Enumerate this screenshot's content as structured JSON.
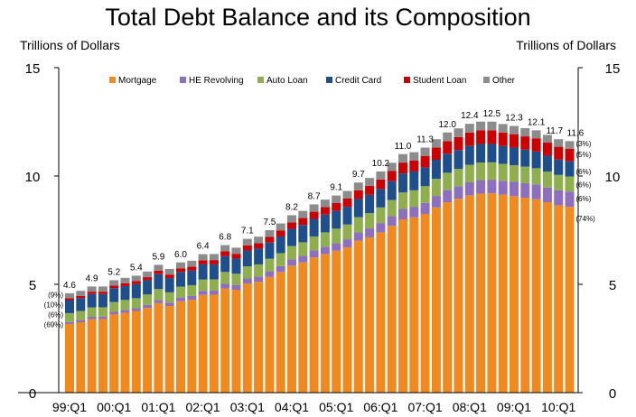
{
  "chart_data": {
    "type": "bar",
    "stacked": true,
    "title": "Total Debt Balance and its Composition",
    "ylabel_left": "Trillions of Dollars",
    "ylabel_right": "Trillions of Dollars",
    "ylim": [
      0,
      15
    ],
    "yticks": [
      0,
      5,
      10,
      15
    ],
    "grid": false,
    "legend_position": "top",
    "categories": [
      "99:Q1",
      "99:Q2",
      "99:Q3",
      "99:Q4",
      "00:Q1",
      "00:Q2",
      "00:Q3",
      "00:Q4",
      "01:Q1",
      "01:Q2",
      "01:Q3",
      "01:Q4",
      "02:Q1",
      "02:Q2",
      "02:Q3",
      "02:Q4",
      "03:Q1",
      "03:Q2",
      "03:Q3",
      "03:Q4",
      "04:Q1",
      "04:Q2",
      "04:Q3",
      "04:Q4",
      "05:Q1",
      "05:Q2",
      "05:Q3",
      "05:Q4",
      "06:Q1",
      "06:Q2",
      "06:Q3",
      "06:Q4",
      "07:Q1",
      "07:Q2",
      "07:Q3",
      "07:Q4",
      "08:Q1",
      "08:Q2",
      "08:Q3",
      "08:Q4",
      "09:Q1",
      "09:Q2",
      "09:Q3",
      "09:Q4",
      "10:Q1",
      "10:Q2"
    ],
    "xtick_labels": [
      "99:Q1",
      "00:Q1",
      "01:Q1",
      "02:Q1",
      "03:Q1",
      "04:Q1",
      "05:Q1",
      "06:Q1",
      "07:Q1",
      "08:Q1",
      "09:Q1",
      "10:Q1"
    ],
    "series": [
      {
        "name": "Mortgage",
        "color": "#F0891E",
        "values": [
          3.17,
          3.25,
          3.39,
          3.4,
          3.61,
          3.69,
          3.77,
          3.91,
          4.13,
          4.0,
          4.22,
          4.29,
          4.51,
          4.52,
          4.81,
          4.75,
          5.04,
          5.12,
          5.34,
          5.57,
          5.86,
          6.01,
          6.24,
          6.4,
          6.55,
          6.71,
          7.01,
          7.17,
          7.4,
          7.7,
          8.0,
          8.09,
          8.25,
          8.55,
          8.79,
          8.95,
          9.11,
          9.19,
          9.2,
          9.14,
          9.07,
          9.0,
          8.93,
          8.79,
          8.65,
          8.58
        ]
      },
      {
        "name": "HE Revolving",
        "color": "#8E6FBF",
        "values": [
          0.09,
          0.1,
          0.11,
          0.11,
          0.12,
          0.13,
          0.13,
          0.14,
          0.15,
          0.15,
          0.17,
          0.17,
          0.19,
          0.19,
          0.21,
          0.21,
          0.23,
          0.24,
          0.26,
          0.27,
          0.29,
          0.3,
          0.32,
          0.34,
          0.35,
          0.37,
          0.39,
          0.41,
          0.43,
          0.45,
          0.48,
          0.49,
          0.51,
          0.53,
          0.56,
          0.58,
          0.6,
          0.62,
          0.63,
          0.64,
          0.66,
          0.67,
          0.68,
          0.68,
          0.69,
          0.7
        ]
      },
      {
        "name": "Auto Loan",
        "color": "#8FAE4E",
        "values": [
          0.41,
          0.42,
          0.43,
          0.43,
          0.45,
          0.46,
          0.46,
          0.48,
          0.5,
          0.48,
          0.5,
          0.5,
          0.52,
          0.52,
          0.55,
          0.53,
          0.56,
          0.56,
          0.58,
          0.6,
          0.62,
          0.63,
          0.65,
          0.66,
          0.67,
          0.68,
          0.7,
          0.71,
          0.72,
          0.74,
          0.76,
          0.76,
          0.77,
          0.79,
          0.8,
          0.8,
          0.81,
          0.81,
          0.8,
          0.78,
          0.77,
          0.76,
          0.75,
          0.73,
          0.71,
          0.7
        ]
      },
      {
        "name": "Credit Card",
        "color": "#1F4E8C",
        "values": [
          0.6,
          0.6,
          0.62,
          0.61,
          0.64,
          0.64,
          0.65,
          0.66,
          0.69,
          0.66,
          0.68,
          0.68,
          0.7,
          0.69,
          0.73,
          0.7,
          0.73,
          0.73,
          0.75,
          0.77,
          0.79,
          0.8,
          0.81,
          0.82,
          0.82,
          0.82,
          0.84,
          0.84,
          0.85,
          0.87,
          0.88,
          0.87,
          0.87,
          0.88,
          0.88,
          0.87,
          0.87,
          0.86,
          0.85,
          0.83,
          0.81,
          0.79,
          0.77,
          0.74,
          0.71,
          0.7
        ]
      },
      {
        "name": "Student Loan",
        "color": "#CC0000",
        "values": [
          0.09,
          0.1,
          0.11,
          0.11,
          0.12,
          0.13,
          0.14,
          0.14,
          0.16,
          0.16,
          0.17,
          0.18,
          0.19,
          0.2,
          0.22,
          0.22,
          0.24,
          0.25,
          0.26,
          0.28,
          0.3,
          0.32,
          0.33,
          0.35,
          0.36,
          0.38,
          0.4,
          0.42,
          0.44,
          0.47,
          0.5,
          0.51,
          0.53,
          0.56,
          0.58,
          0.6,
          0.62,
          0.63,
          0.63,
          0.62,
          0.62,
          0.61,
          0.61,
          0.6,
          0.59,
          0.58
        ]
      },
      {
        "name": "Other",
        "color": "#8C8C8C",
        "values": [
          0.23,
          0.23,
          0.24,
          0.24,
          0.25,
          0.25,
          0.25,
          0.26,
          0.27,
          0.26,
          0.27,
          0.27,
          0.28,
          0.28,
          0.29,
          0.28,
          0.3,
          0.3,
          0.31,
          0.32,
          0.33,
          0.33,
          0.34,
          0.34,
          0.35,
          0.35,
          0.36,
          0.36,
          0.37,
          0.38,
          0.39,
          0.38,
          0.38,
          0.39,
          0.4,
          0.4,
          0.4,
          0.4,
          0.4,
          0.39,
          0.38,
          0.38,
          0.37,
          0.36,
          0.35,
          0.35
        ]
      }
    ],
    "total_labels": [
      {
        "category": "99:Q1",
        "text": "4.6"
      },
      {
        "category": "99:Q3",
        "text": "4.9"
      },
      {
        "category": "00:Q1",
        "text": "5.2"
      },
      {
        "category": "00:Q3",
        "text": "5.4"
      },
      {
        "category": "01:Q1",
        "text": "5.9"
      },
      {
        "category": "01:Q3",
        "text": "6.0"
      },
      {
        "category": "02:Q1",
        "text": "6.4"
      },
      {
        "category": "02:Q3",
        "text": "6.8"
      },
      {
        "category": "03:Q1",
        "text": "7.1"
      },
      {
        "category": "03:Q3",
        "text": "7.5"
      },
      {
        "category": "04:Q1",
        "text": "8.2"
      },
      {
        "category": "04:Q3",
        "text": "8.7"
      },
      {
        "category": "05:Q1",
        "text": "9.1"
      },
      {
        "category": "05:Q3",
        "text": "9.7"
      },
      {
        "category": "06:Q1",
        "text": "10.2"
      },
      {
        "category": "06:Q3",
        "text": "11.0"
      },
      {
        "category": "07:Q1",
        "text": "11.3"
      },
      {
        "category": "07:Q3",
        "text": "12.0"
      },
      {
        "category": "08:Q1",
        "text": "12.4"
      },
      {
        "category": "08:Q3",
        "text": "12.5"
      },
      {
        "category": "09:Q1",
        "text": "12.3"
      },
      {
        "category": "09:Q3",
        "text": "12.1"
      },
      {
        "category": "10:Q1",
        "text": "11.7"
      },
      {
        "category": "10:Q2",
        "text": "11.6"
      }
    ],
    "share_labels_start": [
      {
        "text": "(9%)",
        "y": 4.0
      },
      {
        "text": "(10%)",
        "y": 3.8
      },
      {
        "text": "(6%)",
        "y": 3.5
      },
      {
        "text": "(69%)",
        "y": 3.15
      }
    ],
    "share_labels_end": [
      {
        "text": "(3%)",
        "y": 11.5
      },
      {
        "text": "(5%)",
        "y": 11.0
      },
      {
        "text": "(6%)",
        "y": 10.2
      },
      {
        "text": "(6%)",
        "y": 9.6
      },
      {
        "text": "(6%)",
        "y": 8.95
      },
      {
        "text": "(74%)",
        "y": 8.05
      }
    ]
  }
}
